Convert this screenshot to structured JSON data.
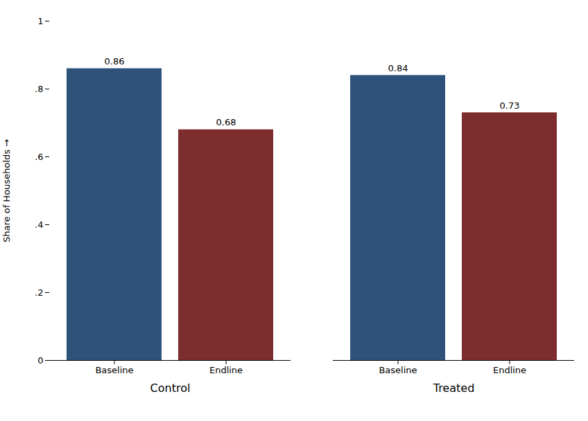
{
  "chart_data": {
    "type": "bar",
    "categories": [
      "Baseline",
      "Endline",
      "Baseline",
      "Endline"
    ],
    "groups": [
      "Control",
      "Control",
      "Treated",
      "Treated"
    ],
    "values": [
      0.86,
      0.68,
      0.84,
      0.73
    ],
    "colors": [
      "#2e527a",
      "#7d2d2d",
      "#2e527a",
      "#7d2d2d"
    ],
    "ylabel": "Share of Households",
    "ylim": [
      0,
      1.0
    ],
    "yticks": [
      0,
      {
        "value": 0.2,
        "label": ".2"
      },
      {
        "value": 0.4,
        "label": ".4"
      },
      {
        "value": 0.6,
        "label": ".6"
      },
      {
        "value": 0.8,
        "label": ".8"
      },
      1
    ],
    "grid": false,
    "data_labels": true
  }
}
